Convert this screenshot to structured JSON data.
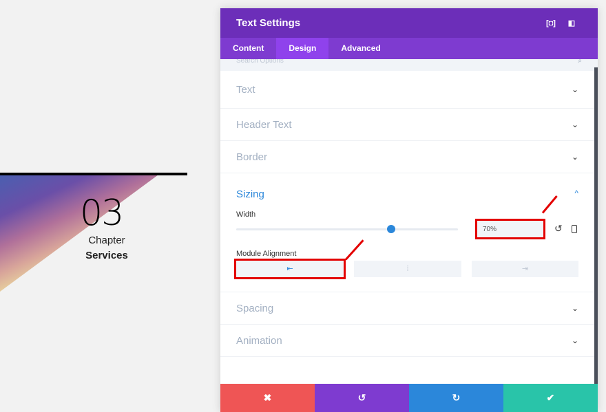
{
  "background": {
    "number": "03",
    "chapter": "Chapter",
    "title": "Services"
  },
  "modal": {
    "title": "Text Settings",
    "header_icons": [
      "fullscreen-icon",
      "sidebar-layout-icon"
    ],
    "tabs": [
      {
        "label": "Content"
      },
      {
        "label": "Design",
        "active": true
      },
      {
        "label": "Advanced"
      }
    ],
    "search_placeholder": "Search Options",
    "sections": {
      "text": "Text",
      "header_text": "Header Text",
      "border": "Border",
      "sizing": "Sizing",
      "spacing": "Spacing",
      "animation": "Animation"
    },
    "sizing": {
      "width_label": "Width",
      "width_value": "70%",
      "slider_percent": 70,
      "alignment_label": "Module Alignment",
      "alignment_options": [
        "left",
        "center",
        "right"
      ],
      "alignment_selected": "left"
    },
    "footer": {
      "cancel_color": "#ef5555",
      "undo_color": "#7e3bd0",
      "redo_color": "#2b87da",
      "save_color": "#29c4a9"
    }
  },
  "colors": {
    "header": "#6c2eb9",
    "tabs": "#7e3bd0",
    "active_tab": "#8f42ec",
    "accent": "#2b87da",
    "annotation": "#e30000"
  }
}
